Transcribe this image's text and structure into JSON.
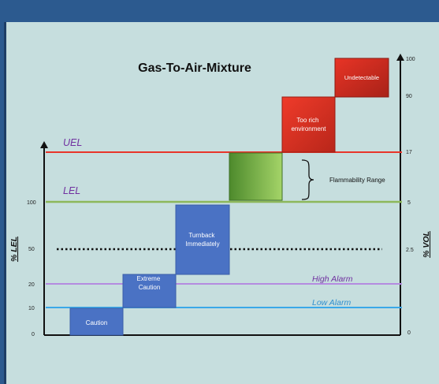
{
  "title": "Gas-To-Air-Mixture",
  "left_axis": {
    "label": "% LEL",
    "ticks": [
      {
        "label": "0",
        "level": 0
      },
      {
        "label": "10",
        "level": 10
      },
      {
        "label": "20",
        "level": 20
      },
      {
        "label": "50",
        "level": 50
      },
      {
        "label": "100",
        "level": 100
      }
    ]
  },
  "right_axis": {
    "label": "% VOL",
    "ticks": [
      {
        "label": "0",
        "level": 0
      },
      {
        "label": "2.5",
        "level": 50
      },
      {
        "label": "5",
        "level": 100
      },
      {
        "label": "17",
        "level": 145
      },
      {
        "label": "90",
        "level": 190
      },
      {
        "label": "100",
        "level": 210
      }
    ]
  },
  "lines": {
    "uel": {
      "label": "UEL",
      "level": 145,
      "color": "#e8352a",
      "label_color": "#7030a0"
    },
    "lel": {
      "label": "LEL",
      "level": 100,
      "color": "#8db85a",
      "label_color": "#7030a0"
    },
    "high_alarm": {
      "label": "High Alarm",
      "level": 20,
      "color": "#b48be0",
      "label_color": "#7030a0"
    },
    "low_alarm": {
      "label": "Low Alarm",
      "level": 10,
      "color": "#3aa8e8",
      "label_color": "#2f8fcf"
    },
    "midpoint": {
      "level": 50,
      "color": "#111111"
    }
  },
  "bars": [
    {
      "label": "Caution",
      "from": 0,
      "to": 10,
      "color": "#4a72c4"
    },
    {
      "label": "Extreme Caution",
      "from": 20,
      "to": 25,
      "color": "#4a72c4"
    },
    {
      "label": "Turnback Immediately",
      "from": 25,
      "to": 100,
      "color": "#4a72c4"
    },
    {
      "label": "",
      "from": 100,
      "to": 145,
      "color": "gradient-green"
    },
    {
      "label": "Too rich environment",
      "from": 145,
      "to": 190,
      "color": "#d83020"
    },
    {
      "label": "Undetectable",
      "from": 190,
      "to": 210,
      "color": "#c82a1e"
    }
  ],
  "annotation": {
    "label": "Flammability Range"
  }
}
